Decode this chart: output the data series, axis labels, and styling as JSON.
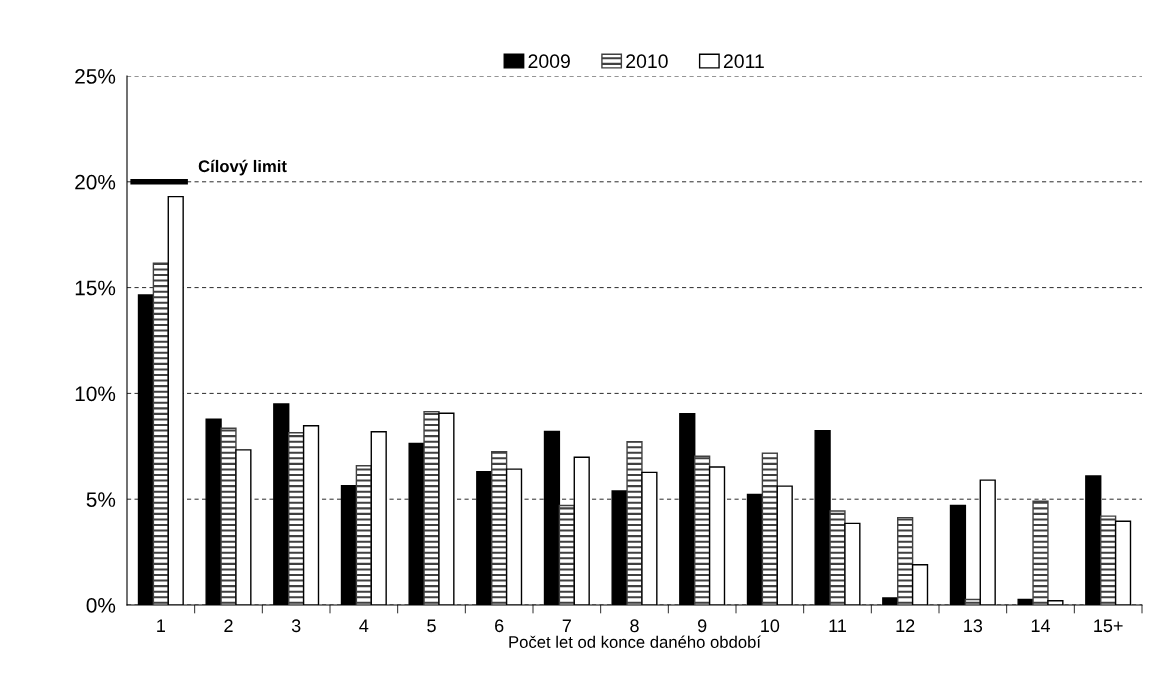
{
  "chart_data": {
    "type": "bar",
    "xlabel": "Počet let od konce daného období",
    "categories": [
      "1",
      "2",
      "3",
      "4",
      "5",
      "6",
      "7",
      "8",
      "9",
      "10",
      "11",
      "12",
      "13",
      "14",
      "15+"
    ],
    "series": [
      {
        "name": "2009",
        "color": "#000000",
        "values": [
          14.65,
          8.78,
          9.5,
          5.64,
          7.64,
          6.3,
          8.2,
          5.39,
          9.04,
          5.23,
          8.24,
          0.33,
          4.7,
          0.26,
          6.1
        ]
      },
      {
        "name": "2010",
        "color": "#404040",
        "values": [
          16.15,
          8.35,
          8.14,
          6.58,
          9.14,
          7.25,
          4.7,
          7.72,
          7.03,
          7.18,
          4.44,
          4.13,
          0.26,
          4.9,
          4.2
        ]
      },
      {
        "name": "2011",
        "color": "#ffffff",
        "values": [
          19.3,
          7.33,
          8.47,
          8.19,
          9.06,
          6.42,
          6.98,
          6.27,
          6.52,
          5.62,
          3.86,
          1.9,
          5.9,
          0.2,
          3.96
        ]
      }
    ],
    "ylim": [
      0,
      25
    ],
    "yticks": [
      {
        "value": 0,
        "label": "0%"
      },
      {
        "value": 5,
        "label": "5%"
      },
      {
        "value": 10,
        "label": "10%"
      },
      {
        "value": 15,
        "label": "15%"
      },
      {
        "value": 20,
        "label": "20%"
      },
      {
        "value": 25,
        "label": "25%"
      }
    ],
    "grid": "y",
    "legend": "top",
    "ref_lines": [
      {
        "axis": "y",
        "value": 20,
        "label": "Cílový limit",
        "color": "#000000"
      }
    ]
  }
}
